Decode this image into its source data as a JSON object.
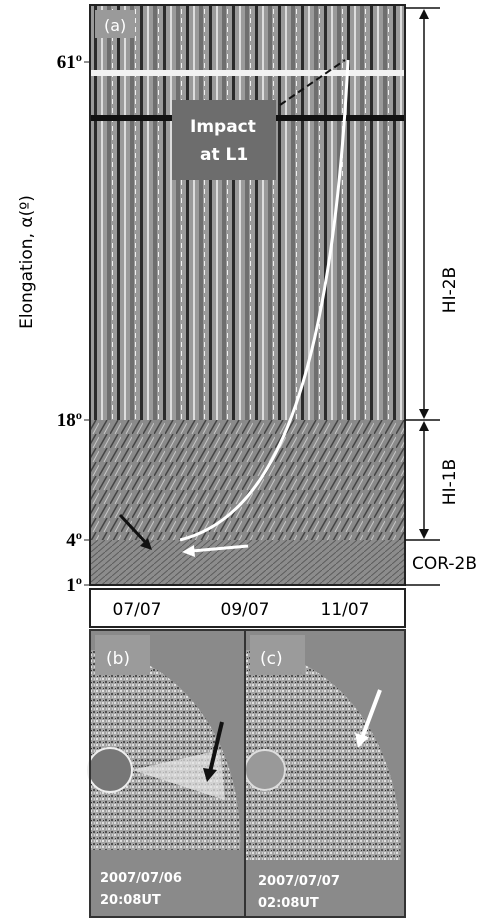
{
  "panel_a": {
    "label": "(a)",
    "y_axis_title": "Elongation, α(º)",
    "elongation_ticks": [
      "61º",
      "18º",
      "4º",
      "1º"
    ],
    "annotation": "Impact at L1",
    "instruments": [
      "HI-2B",
      "HI-1B",
      "COR-2B"
    ],
    "dates": [
      "07/07",
      "09/07",
      "11/07"
    ]
  },
  "panel_b": {
    "label": "(b)",
    "date": "2007/07/06",
    "time": "20:08UT"
  },
  "panel_c": {
    "label": "(c)",
    "date": "2007/07/07",
    "time": "02:08UT"
  }
}
